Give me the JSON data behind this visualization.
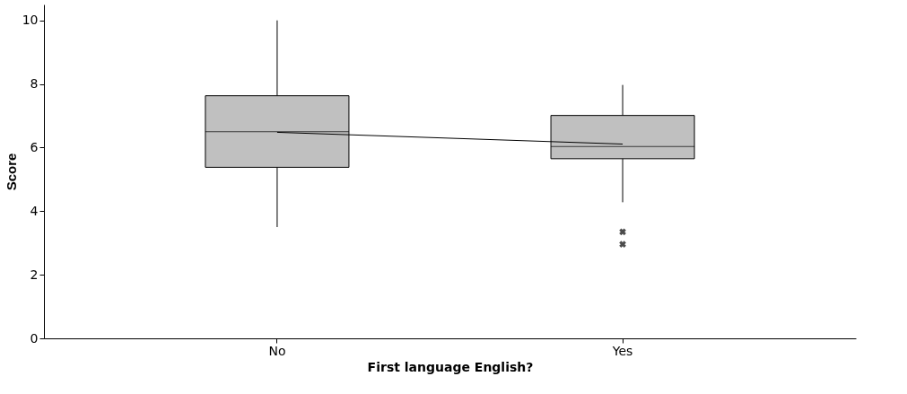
{
  "chart_data": {
    "type": "box",
    "xlabel": "First language English?",
    "ylabel": "Score",
    "categories": [
      "No",
      "Yes"
    ],
    "boxes": [
      {
        "low": 3.5,
        "q1": 5.38,
        "median": 6.5,
        "q3": 7.63,
        "high": 10.0
      },
      {
        "low": 4.28,
        "q1": 5.65,
        "median": 6.03,
        "q3": 7.01,
        "high": 7.97,
        "outliers": [
          3.35,
          2.96
        ]
      }
    ],
    "color": "#c0c0c0",
    "series": [
      {
        "type": "line",
        "color": "#000000",
        "values": [
          6.48,
          6.11
        ]
      }
    ],
    "ylim": [
      0,
      10.5
    ],
    "yticks": [
      0,
      2,
      4,
      6,
      8,
      10
    ],
    "grid": false
  }
}
